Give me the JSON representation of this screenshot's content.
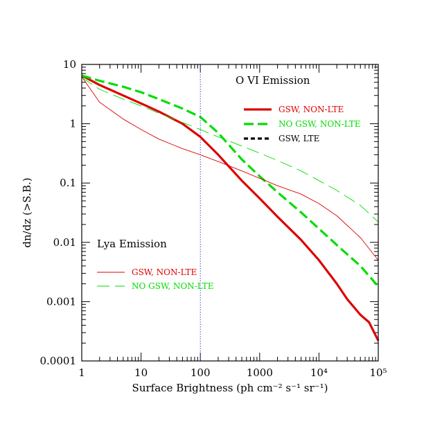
{
  "chart_data": {
    "type": "line",
    "xlabel": "Surface Brightness (ph cm⁻² s⁻¹ sr⁻¹)",
    "ylabel": "dn/dz (>S.B.)",
    "x_scale": "log",
    "y_scale": "log",
    "xlim": [
      1,
      100000
    ],
    "ylim": [
      0.0001,
      10
    ],
    "x_ticks": [
      {
        "value": 1,
        "label": "1"
      },
      {
        "value": 10,
        "label": "10"
      },
      {
        "value": 100,
        "label": "100"
      },
      {
        "value": 1000,
        "label": "1000"
      },
      {
        "value": 10000,
        "label": "10⁴"
      },
      {
        "value": 100000,
        "label": "10⁵"
      }
    ],
    "y_ticks": [
      {
        "value": 0.0001,
        "label": "0.0001"
      },
      {
        "value": 0.001,
        "label": "0.001"
      },
      {
        "value": 0.01,
        "label": "0.01"
      },
      {
        "value": 0.1,
        "label": "0.1"
      },
      {
        "value": 1,
        "label": "1"
      },
      {
        "value": 10,
        "label": "10"
      }
    ],
    "vertical_line": {
      "x": 100,
      "color": "#4444cc",
      "style": "dotted"
    },
    "annotations": [
      {
        "text": "O VI Emission",
        "id": "ovi-title"
      },
      {
        "text": "Lya Emission",
        "id": "lya-title"
      }
    ],
    "legend_ovi": [
      {
        "label": "GSW, NON-LTE",
        "color": "#dd0000",
        "style": "solid",
        "weight": "thick"
      },
      {
        "label": "NO GSW, NON-LTE",
        "color": "#00dd00",
        "style": "long-dash",
        "weight": "thick"
      },
      {
        "label": "GSW, LTE",
        "color": "#000000",
        "style": "short-dash",
        "weight": "thick"
      }
    ],
    "legend_lya": [
      {
        "label": "GSW, NON-LTE",
        "color": "#dd0000",
        "style": "solid",
        "weight": "thin"
      },
      {
        "label": "NO GSW, NON-LTE",
        "color": "#00dd00",
        "style": "long-dash",
        "weight": "thin"
      }
    ],
    "series": [
      {
        "id": "ovi-gsw-nonlte",
        "color": "#dd0000",
        "style": "solid",
        "weight": "thick",
        "x": [
          1,
          2,
          5,
          10,
          20,
          50,
          100,
          200,
          500,
          1000,
          2000,
          5000,
          10000,
          20000,
          30000,
          50000,
          70000,
          100000
        ],
        "y": [
          6.5,
          4.5,
          3.0,
          2.2,
          1.6,
          1.0,
          0.6,
          0.3,
          0.11,
          0.055,
          0.027,
          0.011,
          0.005,
          0.002,
          0.0011,
          0.0006,
          0.00045,
          0.00022
        ]
      },
      {
        "id": "ovi-nogsw-nonlte",
        "color": "#00dd00",
        "style": "long-dash",
        "weight": "thick",
        "x": [
          1,
          2,
          5,
          10,
          20,
          50,
          100,
          200,
          500,
          1000,
          2000,
          5000,
          10000,
          20000,
          50000,
          100000
        ],
        "y": [
          6.5,
          5.3,
          4.2,
          3.4,
          2.6,
          1.8,
          1.3,
          0.7,
          0.25,
          0.13,
          0.07,
          0.032,
          0.017,
          0.009,
          0.004,
          0.0018
        ]
      },
      {
        "id": "lya-gsw-nonlte",
        "color": "#dd0000",
        "style": "solid",
        "weight": "thin",
        "x": [
          1,
          2,
          5,
          10,
          20,
          50,
          100,
          200,
          500,
          1000,
          2000,
          5000,
          10000,
          20000,
          50000,
          100000
        ],
        "y": [
          6.2,
          2.3,
          1.2,
          0.8,
          0.55,
          0.38,
          0.3,
          0.23,
          0.16,
          0.12,
          0.09,
          0.065,
          0.045,
          0.028,
          0.012,
          0.005
        ]
      },
      {
        "id": "lya-nogsw-nonlte",
        "color": "#00dd00",
        "style": "long-dash",
        "weight": "thin",
        "x": [
          1,
          2,
          5,
          10,
          20,
          50,
          100,
          200,
          500,
          1000,
          2000,
          5000,
          10000,
          20000,
          50000,
          100000
        ],
        "y": [
          6.0,
          3.8,
          2.6,
          2.0,
          1.5,
          1.05,
          0.8,
          0.6,
          0.42,
          0.32,
          0.24,
          0.16,
          0.11,
          0.075,
          0.042,
          0.022
        ]
      }
    ]
  }
}
